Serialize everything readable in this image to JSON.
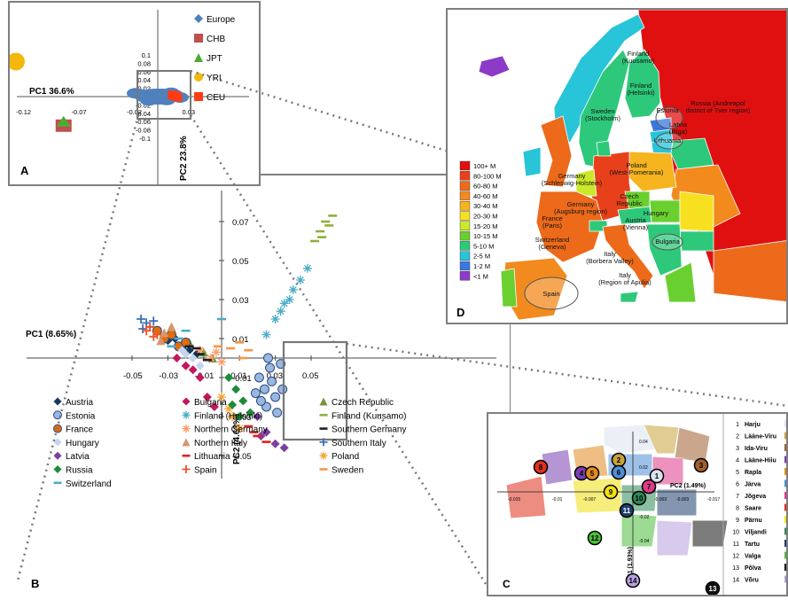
{
  "colors": {
    "Europe": "#4f81bd",
    "CHB": "#c0504d",
    "JPT": "#4bac34",
    "YRI": "#f3b80d",
    "CEU": "#ff3b14",
    "Austria": "#17375e",
    "Bulgaria": "#c2185b",
    "Czech Republic": "#77933c",
    "Estonia": "#9ab7e1",
    "Finland (Helsinki)": "#4bacc6",
    "Finland (Kuusamo)": "#8fb03c",
    "France": "#e46c0a",
    "Northern Germany": "#ff9966",
    "Southern Germany": "#1f1f1f",
    "Hungary": "#c5d5f0",
    "Northern Italy": "#d9966b",
    "Southern Italy": "#3b6fb7",
    "Latvia": "#7b3fa0",
    "Lithuania": "#e02020",
    "Poland": "#f2a533",
    "Russia": "#1e8a3a",
    "Spain": "#f0532a",
    "Sweden": "#f79646",
    "Switzerland": "#4bacc6"
  },
  "chart_data": [
    {
      "panel_label": "A",
      "type": "scatter",
      "xlabel": "PC1 36.6%",
      "ylabel": "PC2 23.8%",
      "xlim": [
        -0.13,
        0.07
      ],
      "ylim": [
        -0.1,
        0.1
      ],
      "x_ticks": [
        "-0.12",
        "-0.07",
        "-0.02",
        "0.03"
      ],
      "y_ticks": [
        "0.1",
        "0.08",
        "0.06",
        "0.04",
        "0.02",
        "0",
        "-0.02",
        "-0.04",
        "-0.06",
        "-0.08",
        "-0.1"
      ],
      "legend": [
        "Europe",
        "CHB",
        "JPT",
        "YRI",
        "CEU"
      ],
      "series": [
        {
          "name": "Europe",
          "points": [
            [
              -0.015,
              0.005
            ],
            [
              -0.01,
              -0.003
            ],
            [
              -0.005,
              0.003
            ],
            [
              0.0,
              -0.004
            ],
            [
              0.005,
              0.006
            ],
            [
              0.01,
              0.0
            ],
            [
              0.015,
              0.004
            ],
            [
              0.02,
              -0.002
            ],
            [
              -0.02,
              0.008
            ],
            [
              0.008,
              -0.008
            ],
            [
              -0.008,
              -0.009
            ],
            [
              0.012,
              0.009
            ]
          ]
        },
        {
          "name": "CHB",
          "points": [
            [
              -0.085,
              -0.074
            ]
          ]
        },
        {
          "name": "JPT",
          "points": [
            [
              -0.085,
              -0.07
            ]
          ]
        },
        {
          "name": "YRI",
          "points": [
            [
              -0.128,
              0.084
            ]
          ]
        },
        {
          "name": "CEU",
          "points": [
            [
              0.015,
              0.002
            ],
            [
              0.018,
              -0.001
            ],
            [
              0.013,
              0.004
            ]
          ]
        }
      ]
    },
    {
      "panel_label": "B",
      "type": "scatter",
      "xlabel": "PC1 (8.65%)",
      "ylabel": "PC2 (4.68%)",
      "xlim": [
        -0.05,
        0.07
      ],
      "ylim": [
        -0.055,
        0.08
      ],
      "x_ticks": [
        "-0.05",
        "-0.03",
        "-0.01",
        "0.01",
        "0.03",
        "0.05"
      ],
      "y_ticks": [
        "0.07",
        "0.05",
        "0.03",
        "0.01",
        "-0.01",
        "-0.03",
        "-0.05"
      ],
      "legend": [
        "Austria",
        "Bulgaria",
        "Czech Republic",
        "Estonia",
        "Finland (Helsinki)",
        "Finland (Kuusamo)",
        "France",
        "Northern Germany",
        "Southern Germany",
        "Hungary",
        "Northern Italy",
        "Southern Italy",
        "Latvia",
        "Lithuania",
        "Poland",
        "Russia",
        "Spain",
        "Sweden",
        "Switzerland"
      ],
      "series": [
        {
          "name": "Austria",
          "points": [
            [
              -0.03,
              0.009
            ],
            [
              -0.022,
              0.005
            ],
            [
              -0.018,
              0.004
            ],
            [
              -0.026,
              0.01
            ],
            [
              -0.014,
              0.002
            ]
          ]
        },
        {
          "name": "Bulgaria",
          "points": [
            [
              -0.025,
              0.0
            ],
            [
              -0.02,
              -0.004
            ],
            [
              -0.016,
              -0.006
            ],
            [
              -0.012,
              -0.01
            ],
            [
              -0.008,
              -0.02
            ],
            [
              -0.004,
              -0.025
            ]
          ]
        },
        {
          "name": "Czech Republic",
          "points": [
            [
              -0.028,
              0.016
            ],
            [
              -0.018,
              0.008
            ],
            [
              -0.01,
              0.003
            ],
            [
              -0.005,
              0.0
            ]
          ]
        },
        {
          "name": "Estonia",
          "points": [
            [
              0.021,
              -0.01
            ],
            [
              0.024,
              -0.016
            ],
            [
              0.027,
              -0.005
            ],
            [
              0.03,
              -0.02
            ],
            [
              0.025,
              -0.025
            ],
            [
              0.028,
              -0.012
            ],
            [
              0.033,
              -0.003
            ],
            [
              0.022,
              -0.022
            ],
            [
              0.031,
              -0.028
            ],
            [
              0.026,
              0.0
            ],
            [
              0.034,
              -0.016
            ],
            [
              0.019,
              -0.018
            ]
          ]
        },
        {
          "name": "Finland (Helsinki)",
          "points": [
            [
              0.03,
              0.02
            ],
            [
              0.035,
              0.028
            ],
            [
              0.04,
              0.035
            ],
            [
              0.044,
              0.04
            ],
            [
              0.048,
              0.046
            ],
            [
              0.038,
              0.03
            ],
            [
              0.025,
              0.012
            ],
            [
              0.033,
              0.024
            ]
          ]
        },
        {
          "name": "Finland (Kuusamo)",
          "points": [
            [
              0.052,
              0.06
            ],
            [
              0.055,
              0.065
            ],
            [
              0.058,
              0.07
            ],
            [
              0.062,
              0.073
            ],
            [
              0.06,
              0.068
            ],
            [
              0.056,
              0.062
            ]
          ]
        },
        {
          "name": "France",
          "points": [
            [
              -0.036,
              0.014
            ],
            [
              -0.032,
              0.01
            ],
            [
              -0.028,
              0.012
            ],
            [
              -0.024,
              0.006
            ],
            [
              -0.02,
              0.008
            ]
          ]
        },
        {
          "name": "Northern Germany",
          "points": [
            [
              -0.012,
              0.004
            ],
            [
              -0.006,
              0.0
            ],
            [
              0.0,
              -0.002
            ],
            [
              -0.003,
              0.003
            ]
          ]
        },
        {
          "name": "Southern Germany",
          "points": [
            [
              -0.018,
              0.006
            ],
            [
              -0.012,
              0.002
            ],
            [
              -0.008,
              -0.001
            ],
            [
              -0.014,
              0.005
            ]
          ]
        },
        {
          "name": "Hungary",
          "points": [
            [
              -0.022,
              0.004
            ],
            [
              -0.016,
              0.0
            ],
            [
              -0.012,
              -0.004
            ],
            [
              -0.02,
              0.002
            ]
          ]
        },
        {
          "name": "Northern Italy",
          "points": [
            [
              -0.032,
              0.013
            ],
            [
              -0.028,
              0.016
            ],
            [
              -0.034,
              0.009
            ]
          ]
        },
        {
          "name": "Southern Italy",
          "points": [
            [
              -0.045,
              0.02
            ],
            [
              -0.042,
              0.018
            ],
            [
              -0.04,
              0.016
            ],
            [
              -0.044,
              0.015
            ],
            [
              -0.038,
              0.019
            ]
          ]
        },
        {
          "name": "Latvia",
          "points": [
            [
              0.02,
              -0.03
            ],
            [
              0.025,
              -0.038
            ],
            [
              0.03,
              -0.044
            ],
            [
              0.035,
              -0.046
            ],
            [
              0.022,
              -0.04
            ]
          ]
        },
        {
          "name": "Lithuania",
          "points": [
            [
              0.015,
              -0.035
            ],
            [
              0.02,
              -0.04
            ],
            [
              0.025,
              -0.043
            ],
            [
              0.018,
              -0.038
            ]
          ]
        },
        {
          "name": "Poland",
          "points": [
            [
              0.0,
              -0.02
            ],
            [
              0.006,
              -0.03
            ],
            [
              0.01,
              -0.036
            ],
            [
              0.004,
              -0.026
            ]
          ]
        },
        {
          "name": "Russia",
          "points": [
            [
              0.004,
              -0.01
            ],
            [
              0.008,
              -0.016
            ],
            [
              0.012,
              -0.022
            ],
            [
              0.016,
              -0.028
            ],
            [
              0.01,
              -0.03
            ],
            [
              0.006,
              -0.024
            ]
          ]
        },
        {
          "name": "Spain",
          "points": [
            [
              -0.04,
              0.016
            ],
            [
              -0.036,
              0.012
            ],
            [
              -0.042,
              0.014
            ],
            [
              -0.038,
              0.011
            ]
          ]
        },
        {
          "name": "Sweden",
          "points": [
            [
              0.005,
              0.005
            ],
            [
              0.01,
              0.008
            ],
            [
              0.015,
              0.004
            ],
            [
              -0.002,
              0.006
            ],
            [
              0.012,
              0.0
            ]
          ]
        },
        {
          "name": "Switzerland",
          "points": [
            [
              -0.028,
              0.006
            ],
            [
              -0.024,
              0.01
            ],
            [
              0.0,
              0.02
            ],
            [
              -0.02,
              0.014
            ]
          ]
        }
      ]
    },
    {
      "panel_label": "C",
      "type": "scatter",
      "xlabel": "PC2 (1.49%)",
      "ylabel": "PC1 (1.93%)",
      "x_ticks": [
        "-0.015",
        "-0.01",
        "-0.007",
        "-0.003",
        "-0.003",
        "-0.017"
      ],
      "y_ticks": [
        "0.04",
        "0.02",
        "-0.02",
        "-0.04"
      ],
      "legend": [
        {
          "num": "1",
          "name": "Harju",
          "color": "#d9e4f0"
        },
        {
          "num": "2",
          "name": "Lääne-Viru",
          "color": "#c9a33b"
        },
        {
          "num": "3",
          "name": "Ida-Viru",
          "color": "#a06030"
        },
        {
          "num": "4",
          "name": "Lääne-Hiiu",
          "color": "#7a3fb0"
        },
        {
          "num": "5",
          "name": "Rapla",
          "color": "#e28a20"
        },
        {
          "num": "6",
          "name": "Järva",
          "color": "#4f8fd6"
        },
        {
          "num": "7",
          "name": "Jõgeva",
          "color": "#e03a8a"
        },
        {
          "num": "8",
          "name": "Saare",
          "color": "#e0301a"
        },
        {
          "num": "9",
          "name": "Pärnu",
          "color": "#f0e010"
        },
        {
          "num": "10",
          "name": "Viljandi",
          "color": "#2e8b57"
        },
        {
          "num": "11",
          "name": "Tartu",
          "color": "#1f3f6f"
        },
        {
          "num": "12",
          "name": "Valga",
          "color": "#4bbf3a"
        },
        {
          "num": "13",
          "name": "Põlva",
          "color": "#111111"
        },
        {
          "num": "14",
          "name": "Võru",
          "color": "#b8a0e0"
        }
      ]
    }
  ],
  "map": {
    "panel_label": "D",
    "legend": [
      {
        "label": "100+ M",
        "color": "#e01010"
      },
      {
        "label": "80-100 M",
        "color": "#e8401a"
      },
      {
        "label": "60-80 M",
        "color": "#ec6a1a"
      },
      {
        "label": "40-60 M",
        "color": "#f28a1e"
      },
      {
        "label": "30-40 M",
        "color": "#f6b41e"
      },
      {
        "label": "20-30 M",
        "color": "#f7e020"
      },
      {
        "label": "15-20 M",
        "color": "#cbe82a"
      },
      {
        "label": "10-15 M",
        "color": "#6ad030"
      },
      {
        "label": "5-10 M",
        "color": "#2ec87a"
      },
      {
        "label": "2-5 M",
        "color": "#28c4d8"
      },
      {
        "label": "1-2 M",
        "color": "#3a78e0"
      },
      {
        "label": "<1 M",
        "color": "#8c3ac8"
      }
    ],
    "places": [
      {
        "text": "Finland\n(Kuusamo)"
      },
      {
        "text": "Finland\n(Helsinki)"
      },
      {
        "text": "Sweden\n(Stockholm)"
      },
      {
        "text": "Estonia"
      },
      {
        "text": "Latvia\n(Riga)"
      },
      {
        "text": "Lithuania"
      },
      {
        "text": "Russia (Andreapol\ndistrict of Tver region)"
      },
      {
        "text": "Poland\n(West-Pomerania)"
      },
      {
        "text": "Germany\n(Schleswig-Holstein)"
      },
      {
        "text": "Czech\nRepublic"
      },
      {
        "text": "Germany\n(Augsburg region)"
      },
      {
        "text": "Austria\n(Vienna)"
      },
      {
        "text": "Hungary"
      },
      {
        "text": "France\n(Paris)"
      },
      {
        "text": "Switzerland\n(Geneva)"
      },
      {
        "text": "Italy\n(Borbera Valley)"
      },
      {
        "text": "Bulgaria"
      },
      {
        "text": "Italy\n(Region of Apulia)"
      },
      {
        "text": "Spain"
      }
    ]
  }
}
